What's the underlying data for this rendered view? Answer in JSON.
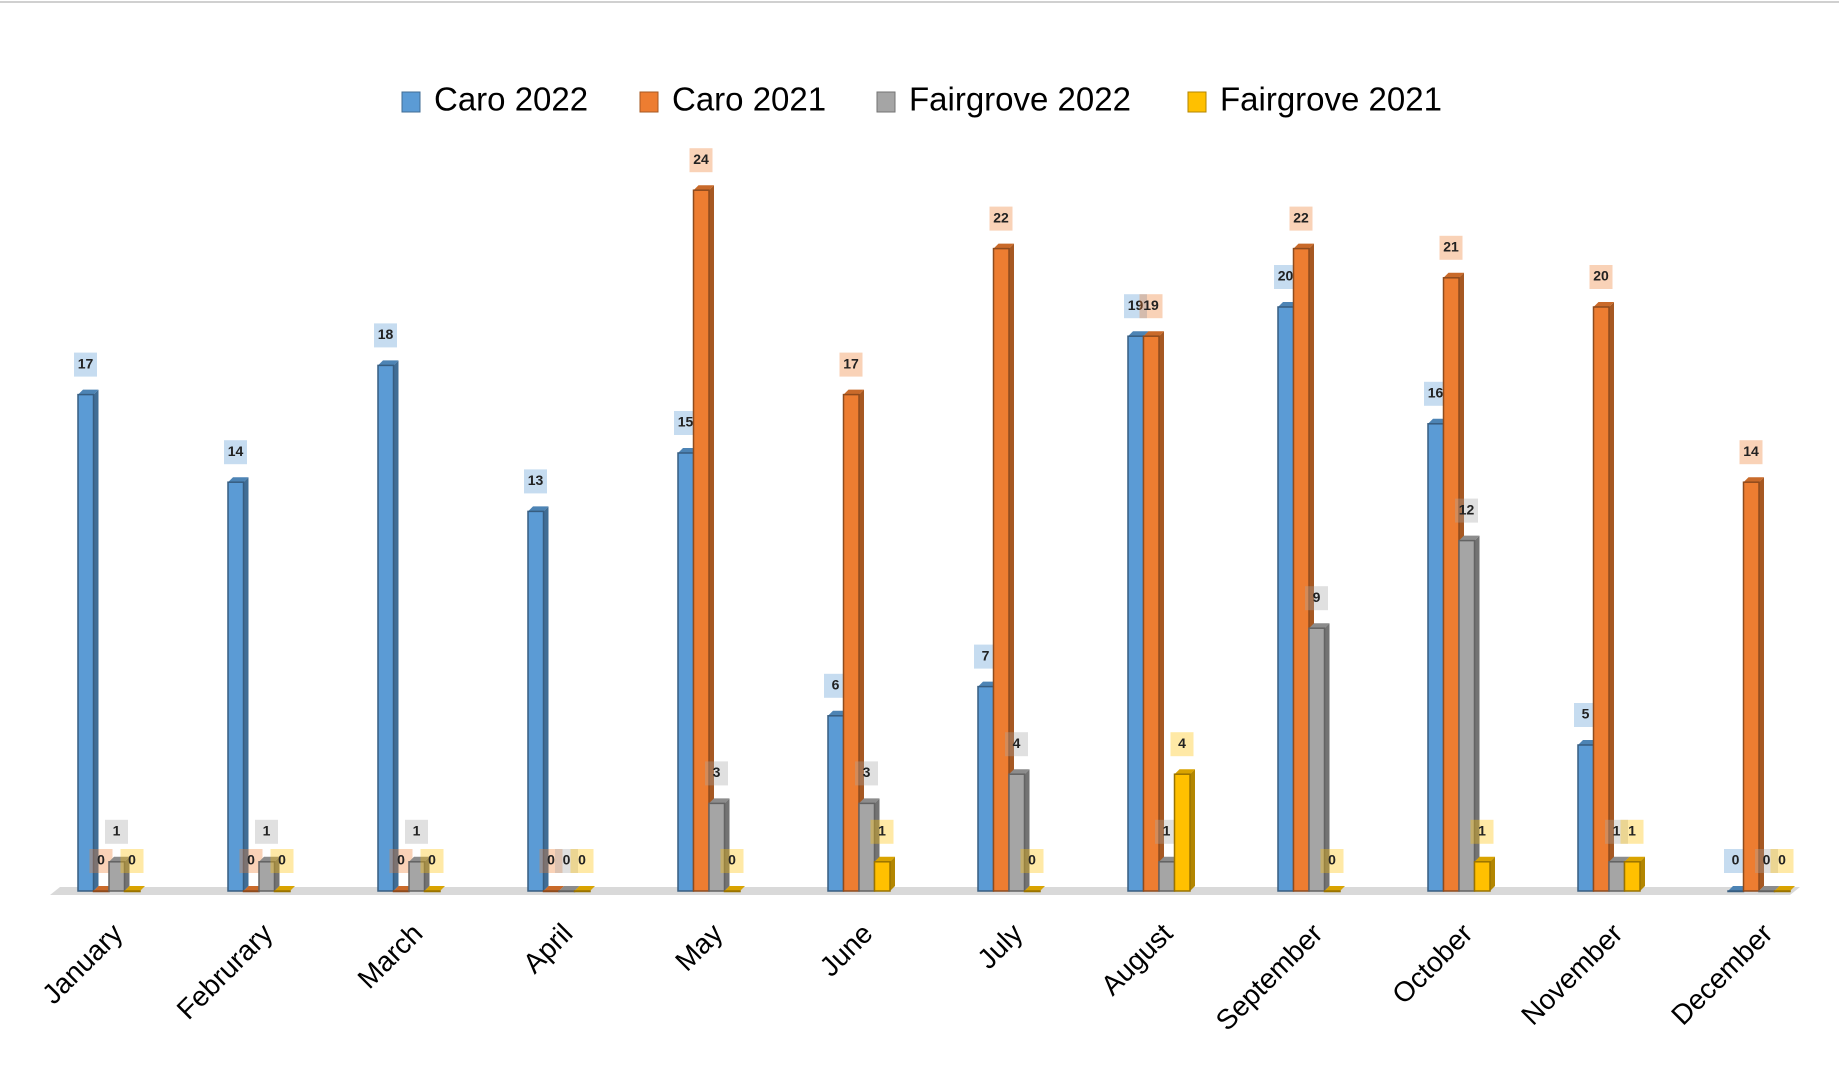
{
  "chart_data": {
    "type": "bar",
    "categories": [
      "January",
      "Februrary",
      "March",
      "April",
      "May",
      "June",
      "July",
      "August",
      "September",
      "October",
      "November",
      "December"
    ],
    "series": [
      {
        "name": "Caro 2022",
        "color": "#5b9bd5",
        "values": [
          17,
          14,
          18,
          13,
          15,
          6,
          7,
          19,
          20,
          16,
          5,
          0
        ]
      },
      {
        "name": "Caro 2021",
        "color": "#ed7d31",
        "values": [
          0,
          0,
          0,
          0,
          24,
          17,
          22,
          19,
          22,
          21,
          20,
          14
        ]
      },
      {
        "name": "Fairgrove 2022",
        "color": "#a5a5a5",
        "values": [
          1,
          1,
          1,
          0,
          3,
          3,
          4,
          1,
          9,
          12,
          1,
          0
        ]
      },
      {
        "name": "Fairgrove 2021",
        "color": "#ffc000",
        "values": [
          0,
          0,
          0,
          0,
          0,
          1,
          0,
          4,
          0,
          1,
          1,
          0
        ]
      }
    ],
    "legend": "top"
  }
}
